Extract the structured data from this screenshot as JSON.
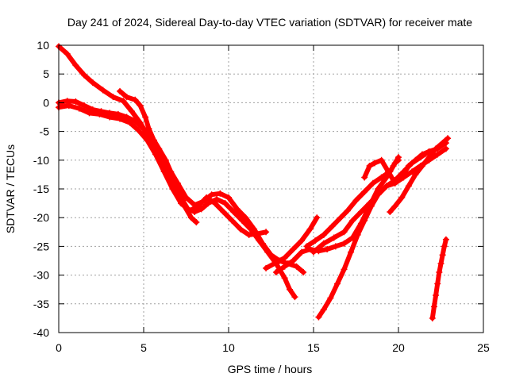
{
  "chart_data": {
    "type": "scatter",
    "title": "Day 241 of 2024, Sidereal Day-to-day VTEC variation (SDTVAR) for receiver mate",
    "xlabel": "GPS time / hours",
    "ylabel": "SDTVAR / TECUs",
    "xlim": [
      0,
      25
    ],
    "ylim": [
      -40,
      10
    ],
    "xticks": [
      0,
      5,
      10,
      15,
      20,
      25
    ],
    "yticks": [
      -40,
      -35,
      -30,
      -25,
      -20,
      -15,
      -10,
      -5,
      0,
      5,
      10
    ],
    "grid": true,
    "color": "#ff0000",
    "marker": "plus",
    "series": [
      {
        "points": [
          [
            0.0,
            9.8
          ],
          [
            0.5,
            8.5
          ],
          [
            1.0,
            6.5
          ],
          [
            1.5,
            4.8
          ],
          [
            2.0,
            3.5
          ],
          [
            2.6,
            2.2
          ],
          [
            3.2,
            1.0
          ],
          [
            3.8,
            0.3
          ],
          [
            4.3,
            -1.5
          ],
          [
            4.8,
            -3.5
          ],
          [
            5.2,
            -5.5
          ],
          [
            5.6,
            -7.5
          ],
          [
            6.0,
            -9.5
          ],
          [
            6.4,
            -11.5
          ],
          [
            6.7,
            -13.5
          ],
          [
            7.0,
            -15.5
          ],
          [
            7.3,
            -17.0
          ],
          [
            7.6,
            -18.5
          ],
          [
            8.0,
            -19.0
          ],
          [
            8.4,
            -18.5
          ],
          [
            8.8,
            -17.5
          ],
          [
            9.3,
            -16.8
          ],
          [
            9.8,
            -17.5
          ],
          [
            10.3,
            -19.0
          ],
          [
            10.8,
            -20.5
          ],
          [
            11.3,
            -22.0
          ],
          [
            11.8,
            -24.0
          ],
          [
            12.3,
            -26.0
          ],
          [
            12.8,
            -28.0
          ],
          [
            13.3,
            -30.5
          ],
          [
            13.6,
            -32.5
          ],
          [
            13.9,
            -33.8
          ]
        ]
      },
      {
        "points": [
          [
            0.0,
            0.0
          ],
          [
            0.5,
            0.3
          ],
          [
            1.0,
            0.2
          ],
          [
            1.5,
            -0.5
          ],
          [
            2.0,
            -1.2
          ],
          [
            2.5,
            -1.5
          ],
          [
            3.0,
            -1.8
          ],
          [
            3.5,
            -2.0
          ],
          [
            4.0,
            -2.5
          ],
          [
            4.5,
            -3.2
          ],
          [
            5.0,
            -4.5
          ],
          [
            5.4,
            -6.5
          ],
          [
            5.8,
            -8.5
          ],
          [
            6.2,
            -10.5
          ],
          [
            6.6,
            -13.0
          ],
          [
            7.0,
            -15.5
          ],
          [
            7.4,
            -18.0
          ],
          [
            7.8,
            -20.0
          ],
          [
            8.1,
            -20.8
          ]
        ]
      },
      {
        "points": [
          [
            0.0,
            -0.8
          ],
          [
            0.6,
            -0.5
          ],
          [
            1.2,
            -1.0
          ],
          [
            1.8,
            -1.8
          ],
          [
            2.4,
            -2.0
          ],
          [
            3.0,
            -2.5
          ],
          [
            3.6,
            -2.8
          ],
          [
            4.2,
            -3.5
          ],
          [
            4.7,
            -4.8
          ],
          [
            5.2,
            -6.5
          ],
          [
            5.7,
            -9.0
          ],
          [
            6.2,
            -12.0
          ],
          [
            6.7,
            -15.0
          ],
          [
            7.2,
            -17.5
          ],
          [
            7.7,
            -18.8
          ],
          [
            8.2,
            -18.0
          ],
          [
            8.7,
            -16.5
          ],
          [
            9.2,
            -17.5
          ],
          [
            9.7,
            -19.0
          ],
          [
            10.2,
            -20.5
          ],
          [
            10.7,
            -22.0
          ],
          [
            11.2,
            -23.0
          ],
          [
            11.7,
            -22.8
          ],
          [
            12.2,
            -22.5
          ]
        ]
      },
      {
        "points": [
          [
            3.6,
            2.0
          ],
          [
            4.0,
            1.0
          ],
          [
            4.5,
            0.5
          ],
          [
            4.8,
            -0.5
          ],
          [
            5.1,
            -2.5
          ],
          [
            5.3,
            -4.5
          ],
          [
            5.6,
            -6.5
          ],
          [
            5.9,
            -8.0
          ],
          [
            6.3,
            -10.0
          ],
          [
            6.6,
            -12.0
          ],
          [
            7.0,
            -14.0
          ],
          [
            7.5,
            -16.5
          ],
          [
            8.0,
            -17.8
          ],
          [
            8.5,
            -17.2
          ],
          [
            9.0,
            -16.0
          ],
          [
            9.5,
            -15.8
          ],
          [
            10.0,
            -16.5
          ],
          [
            10.5,
            -18.5
          ],
          [
            11.0,
            -20.0
          ],
          [
            11.5,
            -22.0
          ],
          [
            12.0,
            -24.5
          ],
          [
            12.5,
            -26.5
          ],
          [
            13.0,
            -27.5
          ],
          [
            13.5,
            -28.0
          ],
          [
            14.0,
            -28.5
          ],
          [
            14.4,
            -29.5
          ]
        ]
      },
      {
        "points": [
          [
            12.2,
            -28.8
          ],
          [
            12.8,
            -27.8
          ],
          [
            13.3,
            -27.0
          ],
          [
            13.8,
            -25.5
          ],
          [
            14.3,
            -24.0
          ],
          [
            14.8,
            -22.0
          ],
          [
            15.2,
            -20.0
          ]
        ]
      },
      {
        "points": [
          [
            12.8,
            -29.5
          ],
          [
            13.3,
            -28.5
          ],
          [
            13.8,
            -27.5
          ],
          [
            14.3,
            -26.0
          ],
          [
            14.8,
            -25.5
          ],
          [
            15.3,
            -25.8
          ],
          [
            15.8,
            -25.5
          ],
          [
            16.3,
            -25.0
          ],
          [
            16.8,
            -24.5
          ],
          [
            17.3,
            -23.5
          ],
          [
            17.8,
            -21.0
          ],
          [
            18.3,
            -18.0
          ],
          [
            18.8,
            -15.0
          ],
          [
            19.3,
            -13.0
          ],
          [
            19.7,
            -11.0
          ],
          [
            20.0,
            -9.5
          ]
        ]
      },
      {
        "points": [
          [
            15.3,
            -37.3
          ],
          [
            15.6,
            -36.0
          ],
          [
            16.0,
            -34.0
          ],
          [
            16.4,
            -31.5
          ],
          [
            16.8,
            -29.0
          ],
          [
            17.2,
            -26.0
          ],
          [
            17.6,
            -23.0
          ],
          [
            18.0,
            -20.5
          ],
          [
            18.4,
            -18.0
          ],
          [
            18.8,
            -16.0
          ],
          [
            19.3,
            -14.5
          ],
          [
            19.8,
            -14.0
          ],
          [
            20.3,
            -13.0
          ],
          [
            20.8,
            -12.0
          ],
          [
            21.3,
            -11.0
          ],
          [
            21.8,
            -10.0
          ],
          [
            22.3,
            -9.0
          ],
          [
            22.8,
            -8.0
          ]
        ]
      },
      {
        "points": [
          [
            14.6,
            -25.0
          ],
          [
            15.1,
            -24.0
          ],
          [
            15.6,
            -23.0
          ],
          [
            16.1,
            -21.5
          ],
          [
            16.6,
            -20.0
          ],
          [
            17.0,
            -18.8
          ],
          [
            17.5,
            -17.0
          ],
          [
            18.0,
            -15.5
          ],
          [
            18.5,
            -14.0
          ],
          [
            19.0,
            -13.0
          ],
          [
            19.5,
            -12.0
          ],
          [
            19.8,
            -10.5
          ],
          [
            20.0,
            -10.0
          ]
        ]
      },
      {
        "points": [
          [
            15.0,
            -26.0
          ],
          [
            15.6,
            -24.5
          ],
          [
            16.2,
            -23.5
          ],
          [
            16.8,
            -22.5
          ],
          [
            17.3,
            -20.5
          ],
          [
            17.8,
            -19.0
          ],
          [
            18.3,
            -17.5
          ],
          [
            18.8,
            -16.0
          ],
          [
            19.3,
            -14.5
          ],
          [
            19.8,
            -13.5
          ],
          [
            20.3,
            -12.0
          ],
          [
            20.8,
            -10.5
          ],
          [
            21.3,
            -9.5
          ],
          [
            21.8,
            -8.5
          ],
          [
            22.3,
            -8.0
          ],
          [
            22.8,
            -7.0
          ]
        ]
      },
      {
        "points": [
          [
            18.0,
            -13.0
          ],
          [
            18.3,
            -11.0
          ],
          [
            18.6,
            -10.5
          ],
          [
            19.0,
            -10.0
          ],
          [
            19.4,
            -12.0
          ],
          [
            19.8,
            -14.0
          ],
          [
            20.2,
            -13.0
          ],
          [
            20.6,
            -11.0
          ],
          [
            21.0,
            -10.0
          ],
          [
            21.4,
            -9.0
          ],
          [
            21.8,
            -8.5
          ]
        ]
      },
      {
        "points": [
          [
            19.5,
            -19.0
          ],
          [
            19.8,
            -18.0
          ],
          [
            20.2,
            -16.5
          ],
          [
            20.6,
            -14.5
          ],
          [
            21.0,
            -12.5
          ],
          [
            21.4,
            -11.0
          ],
          [
            21.8,
            -9.5
          ],
          [
            22.2,
            -8.0
          ],
          [
            22.6,
            -7.0
          ],
          [
            22.9,
            -6.2
          ]
        ]
      },
      {
        "points": [
          [
            22.0,
            -37.5
          ],
          [
            22.1,
            -35.5
          ],
          [
            22.2,
            -33.5
          ],
          [
            22.3,
            -31.5
          ],
          [
            22.4,
            -29.5
          ],
          [
            22.5,
            -28.0
          ],
          [
            22.6,
            -26.5
          ],
          [
            22.7,
            -25.0
          ],
          [
            22.8,
            -23.8
          ]
        ]
      }
    ]
  }
}
